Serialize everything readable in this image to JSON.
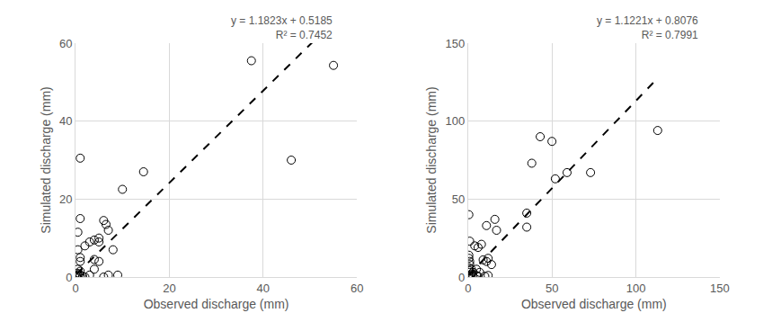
{
  "chart_data": [
    {
      "type": "scatter",
      "x_label": "Observed discharge (mm)",
      "y_label": "Simulated discharge (mm)",
      "annotations": [
        "y = 1.1823x + 0.5185",
        "R² = 0.7452"
      ],
      "x": [
        1,
        1,
        0.5,
        0.5,
        1,
        1,
        2,
        3,
        4,
        5,
        5,
        4,
        5,
        4,
        3,
        6,
        6.5,
        7,
        8,
        6,
        7,
        9,
        10,
        14.5,
        37.5,
        46,
        55,
        0.2,
        0.5,
        0.3,
        1,
        0.5,
        1,
        1.5,
        2,
        0.8,
        0.3
      ],
      "values": [
        30.5,
        15,
        11.5,
        7,
        5,
        4,
        8,
        9,
        9.5,
        9,
        10,
        4.5,
        4,
        2,
        0.5,
        14.5,
        13.5,
        12,
        7,
        0,
        0.5,
        0.5,
        22.5,
        27,
        55.5,
        30,
        54.3,
        0.2,
        0.5,
        1,
        1.5,
        2,
        0.3,
        0.2,
        0,
        0.8,
        0
      ],
      "color": "#000000",
      "marker": "circle-open",
      "trendline": {
        "slope": 1.1823,
        "intercept": 0.5185,
        "line_style": "dash"
      },
      "xlim": [
        0,
        60
      ],
      "xticks": [
        0,
        20,
        40,
        60
      ],
      "ylim": [
        0,
        60
      ],
      "yticks": [
        0,
        20,
        40,
        60
      ],
      "grid": true
    },
    {
      "type": "scatter",
      "x_label": "Observed discharge (mm)",
      "y_label": "Simulated discharge (mm)",
      "annotations": [
        "y = 1.1221x + 0.8076",
        "R² = 0.7991"
      ],
      "x": [
        0.5,
        1,
        0.5,
        0.5,
        1,
        1,
        0.5,
        2,
        1,
        3,
        2,
        1,
        0.5,
        3,
        5,
        6,
        4,
        6,
        8,
        9,
        11,
        12,
        14,
        11,
        12,
        16,
        17,
        35,
        35,
        38,
        43,
        50,
        52,
        59,
        73,
        113,
        5,
        7,
        10,
        2,
        0.2
      ],
      "values": [
        40,
        23,
        14,
        12,
        10,
        8,
        6,
        5,
        4,
        3,
        2,
        1,
        0.5,
        0.5,
        1,
        0.5,
        20,
        19,
        21,
        11,
        10,
        12,
        8,
        33,
        1,
        37,
        30,
        41,
        32,
        73,
        90,
        87,
        63,
        67,
        67,
        94,
        5,
        3,
        0.5,
        0.2,
        0
      ],
      "color": "#000000",
      "marker": "circle-open",
      "trendline": {
        "slope": 1.1221,
        "intercept": 0.8076,
        "line_style": "dash"
      },
      "xlim": [
        0,
        150
      ],
      "xticks": [
        0,
        50,
        100,
        150
      ],
      "ylim": [
        0,
        150
      ],
      "yticks": [
        0,
        50,
        100,
        150
      ],
      "grid": true
    }
  ]
}
